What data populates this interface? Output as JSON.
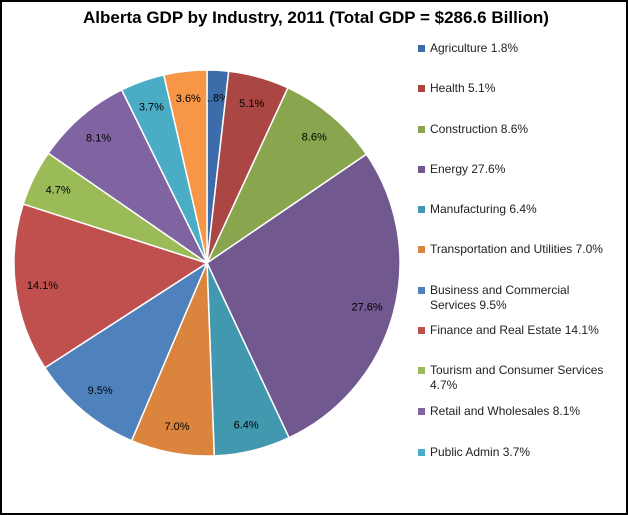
{
  "chart_data": {
    "type": "pie",
    "title": "Alberta GDP by Industry, 2011 (Total GDP = $286.6 Billion)",
    "legend_position": "right",
    "slices": [
      {
        "name": "Agriculture",
        "value": 1.8,
        "label": "1.8%",
        "legend": "Agriculture 1.8%",
        "color": "#3D6CAA"
      },
      {
        "name": "Health",
        "value": 5.1,
        "label": "5.1%",
        "legend": "Health 5.1%",
        "color": "#AA4643"
      },
      {
        "name": "Construction",
        "value": 8.6,
        "label": "8.6%",
        "legend": "Construction 8.6%",
        "color": "#89A54E"
      },
      {
        "name": "Energy",
        "value": 27.6,
        "label": "27.6%",
        "legend": "Energy 27.6%",
        "color": "#71588F"
      },
      {
        "name": "Manufacturing",
        "value": 6.4,
        "label": "6.4%",
        "legend": "Manufacturing 6.4%",
        "color": "#4198AF"
      },
      {
        "name": "Transportation and Utilities",
        "value": 7.0,
        "label": "7.0%",
        "legend": "Transportation and Utilities 7.0%",
        "color": "#DB843D"
      },
      {
        "name": "Business and Commercial Services",
        "value": 9.5,
        "label": "9.5%",
        "legend": "Business and Commercial Services 9.5%",
        "color": "#4F81BD"
      },
      {
        "name": "Finance and Real Estate",
        "value": 14.1,
        "label": "14.1%",
        "legend": "Finance and Real Estate 14.1%",
        "color": "#C0504D"
      },
      {
        "name": "Tourism and Consumer Services",
        "value": 4.7,
        "label": "4.7%",
        "legend": "Tourism and Consumer Services 4.7%",
        "color": "#9BBB59"
      },
      {
        "name": "Retail and Wholesales",
        "value": 8.1,
        "label": "8.1%",
        "legend": "Retail and Wholesales 8.1%",
        "color": "#8064A2"
      },
      {
        "name": "Public Admin",
        "value": 3.7,
        "label": "3.7%",
        "legend": "Public Admin 3.7%",
        "color": "#4BACC6"
      },
      {
        "name": "",
        "value": 3.6,
        "label": "3.6%",
        "legend": null,
        "color": "#F79646"
      }
    ]
  }
}
